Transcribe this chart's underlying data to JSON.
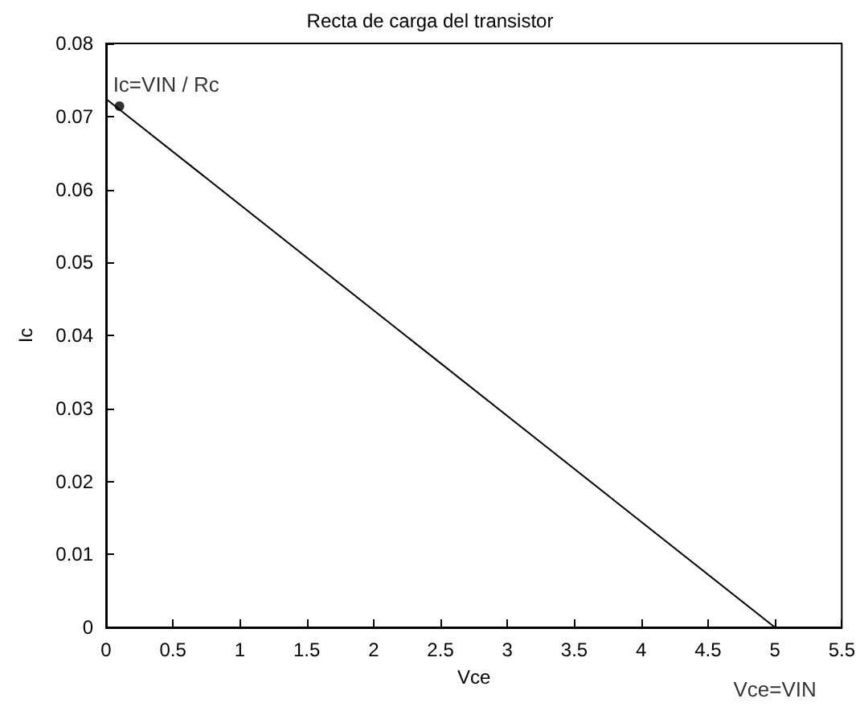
{
  "chart_data": {
    "type": "line",
    "title": "Recta de carga del transistor",
    "xlabel": "Vce",
    "ylabel": "Ic",
    "series": [
      {
        "x": [
          0,
          5
        ],
        "values": [
          0.0724,
          0
        ],
        "color": "#000000",
        "marker": "none"
      },
      {
        "type": "scatter",
        "x": [
          0.1
        ],
        "values": [
          0.0714
        ],
        "color": "#000000",
        "marker": "circle"
      }
    ],
    "annotations": [
      {
        "text": "Ic=VIN / Rc",
        "x": 0.1,
        "y": 0.0714
      },
      {
        "text": "Vce=VIN",
        "x": 5,
        "y": 0
      }
    ],
    "xlim": [
      0,
      5.5
    ],
    "xticks": [
      0,
      0.5,
      1,
      1.5,
      2,
      2.5,
      3,
      3.5,
      4,
      4.5,
      5,
      5.5
    ],
    "ylim": [
      0,
      0.08
    ],
    "yticks": [
      0,
      0.01,
      0.02,
      0.03,
      0.04,
      0.05,
      0.06,
      0.07,
      0.08
    ],
    "grid": false
  }
}
